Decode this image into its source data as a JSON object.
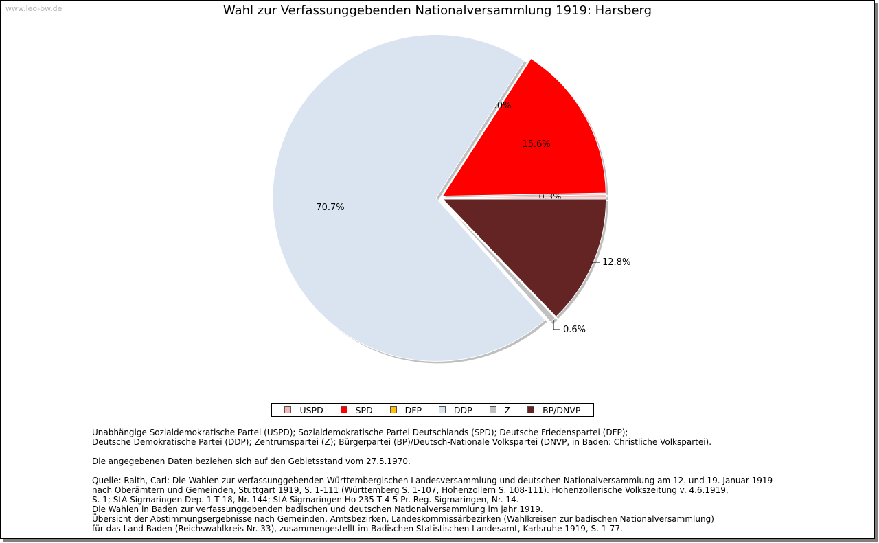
{
  "watermark": "www.leo-bw.de",
  "chart_data": {
    "type": "pie",
    "title": "Wahl zur Verfassunggebenden Nationalversammlung 1919: Harsberg",
    "start_angle_deg": 0,
    "slices": [
      {
        "name": "USPD",
        "value": 0.3,
        "label": "0.3%",
        "color": "#f4b6b6"
      },
      {
        "name": "SPD",
        "value": 15.6,
        "label": "15.6%",
        "color": "#ff0000"
      },
      {
        "name": "DFP",
        "value": 0.0,
        "label": "0.0%",
        "color": "#ffc000"
      },
      {
        "name": "DDP",
        "value": 70.7,
        "label": "70.7%",
        "color": "#dae3f0"
      },
      {
        "name": "Z",
        "value": 0.6,
        "label": "0.6%",
        "color": "#c0c0c0"
      },
      {
        "name": "BP/DNVP",
        "value": 12.8,
        "label": "12.8%",
        "color": "#632423"
      }
    ],
    "legend_placement": "bottom"
  },
  "notes": {
    "parties": "Unabhängige Sozialdemokratische Partei (USPD); Sozialdemokratische Partei Deutschlands (SPD); Deutsche Friedenspartei (DFP);\nDeutsche Demokratische Partei (DDP); Zentrumspartei (Z); Bürgerpartei (BP)/Deutsch-Nationale Volkspartei (DNVP, in Baden: Christliche Volkspartei).",
    "territory": "Die angegebenen Daten beziehen sich auf den Gebietsstand vom 27.5.1970.",
    "source": "Quelle: Raith, Carl: Die Wahlen zur verfassunggebenden Württembergischen Landesversammlung und deutschen Nationalversammlung am 12. und 19. Januar 1919\nnach Oberämtern und Gemeinden, Stuttgart 1919, S. 1-111 (Württemberg S. 1-107, Hohenzollern S. 108-111). Hohenzollerische Volkszeitung v. 4.6.1919,\nS. 1; StA Sigmaringen Dep. 1 T 18, Nr. 144; StA Sigmaringen Ho 235 T 4-5 Pr. Reg. Sigmaringen, Nr. 14.\nDie Wahlen in Baden zur verfassunggebenden badischen und deutschen Nationalversammlung im jahr 1919.\nÜbersicht der Abstimmungsergebnisse nach Gemeinden, Amtsbezirken, Landeskommissärbezirken (Wahlkreisen zur badischen Nationalversammlung)\nfür das Land Baden (Reichswahlkreis Nr. 33), zusammengestellt im Badischen Statistischen Landesamt, Karlsruhe 1919, S. 1-77."
  }
}
